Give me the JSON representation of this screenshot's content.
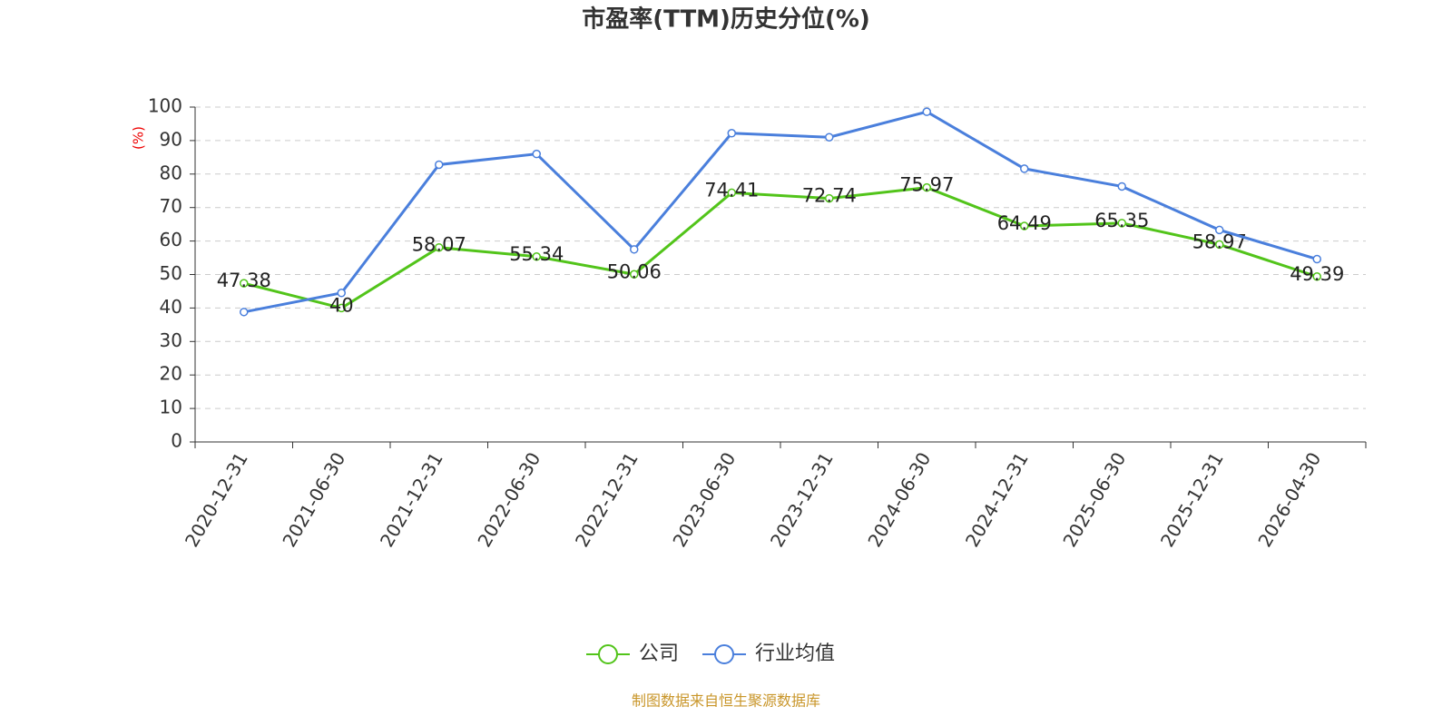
{
  "chart_data": {
    "type": "line",
    "title": "市盈率(TTM)历史分位(%)",
    "y_label": "(%)",
    "categories": [
      "2020-12-31",
      "2021-06-30",
      "2021-12-31",
      "2022-06-30",
      "2022-12-31",
      "2023-06-30",
      "2023-12-31",
      "2024-06-30",
      "2024-12-31",
      "2025-06-30",
      "2025-12-31",
      "2026-04-30"
    ],
    "series": [
      {
        "name": "公司",
        "color": "#52c41a",
        "labels": true,
        "values": [
          47.38,
          40,
          58.07,
          55.34,
          50.06,
          74.41,
          72.74,
          75.97,
          64.49,
          65.35,
          58.97,
          49.39
        ]
      },
      {
        "name": "行业均值",
        "color": "#4a7fdc",
        "labels": false,
        "values": [
          38.8,
          44.5,
          82.8,
          86,
          57.5,
          92.2,
          91,
          98.6,
          81.6,
          76.3,
          63.3,
          54.6
        ]
      }
    ],
    "ylim": [
      0,
      100
    ],
    "yticks": [
      0,
      10,
      20,
      30,
      40,
      50,
      60,
      70,
      80,
      90,
      100
    ],
    "grid": true,
    "legend": "bottom",
    "source": "制图数据来自恒生聚源数据库"
  }
}
